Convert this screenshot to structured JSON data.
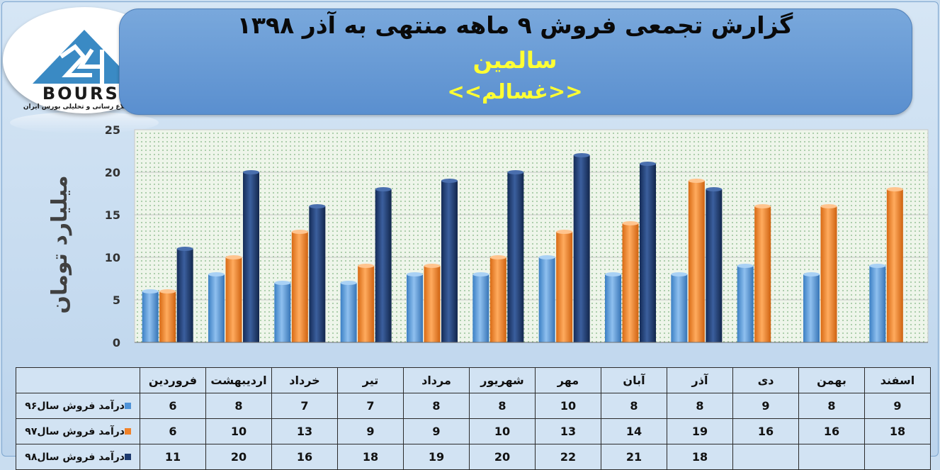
{
  "title": "گزارش تجمعی فروش  ۹ ماهه منتهی به آذر ۱۳۹۸",
  "company": "سالمین",
  "ticker": "<<غسالم>>",
  "logo": {
    "wordmark": "BOURSE",
    "tagline": "پایگاه اطلاع رسانی و تحلیلی بورس ایران"
  },
  "colors": {
    "series_96": "#4f93d8",
    "series_97": "#f0822a",
    "series_98": "#1d3a6e",
    "banner": "#6b9ed8"
  },
  "chart_data": {
    "type": "bar",
    "ylabel": "میلیارد تومان",
    "ylim": [
      0,
      25
    ],
    "yticks": [
      "0",
      "5",
      "10",
      "15",
      "20",
      "25"
    ],
    "categories": [
      "فروردین",
      "اردیبهشت",
      "خرداد",
      "تیر",
      "مرداد",
      "شهریور",
      "مهر",
      "آبان",
      "آذر",
      "دی",
      "بهمن",
      "اسفند"
    ],
    "series": [
      {
        "name": "درآمد فروش سال۹۶",
        "values": [
          6,
          8,
          7,
          7,
          8,
          8,
          10,
          8,
          8,
          9,
          8,
          9
        ]
      },
      {
        "name": "درآمد فروش سال۹۷",
        "values": [
          6,
          10,
          13,
          9,
          9,
          10,
          13,
          14,
          19,
          16,
          16,
          18
        ]
      },
      {
        "name": "درآمد فروش سال۹۸",
        "values": [
          11,
          20,
          16,
          18,
          19,
          20,
          22,
          21,
          18,
          null,
          null,
          null
        ]
      }
    ],
    "table": {
      "rows": [
        {
          "label": "درآمد فروش سال۹۶",
          "cells": [
            "6",
            "8",
            "7",
            "7",
            "8",
            "8",
            "10",
            "8",
            "8",
            "9",
            "8",
            "9"
          ]
        },
        {
          "label": "درآمد فروش سال۹۷",
          "cells": [
            "6",
            "10",
            "13",
            "9",
            "9",
            "10",
            "13",
            "14",
            "19",
            "16",
            "16",
            "18"
          ]
        },
        {
          "label": "درآمد فروش سال۹۸",
          "cells": [
            "11",
            "20",
            "16",
            "18",
            "19",
            "20",
            "22",
            "21",
            "18",
            "",
            "",
            ""
          ]
        }
      ]
    }
  }
}
